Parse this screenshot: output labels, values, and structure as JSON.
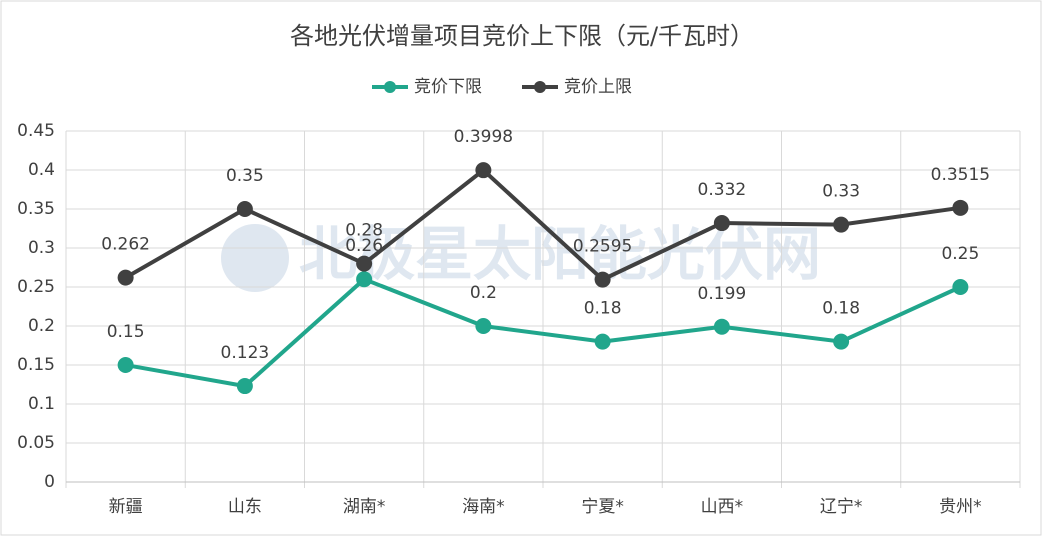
{
  "chart_data": {
    "type": "line",
    "title": "各地光伏增量项目竞价上下限（元/千瓦时）",
    "watermark": "北极星太阳能光伏网",
    "categories": [
      "新疆",
      "山东",
      "湖南*",
      "海南*",
      "宁夏*",
      "山西*",
      "辽宁*",
      "贵州*"
    ],
    "series": [
      {
        "name": "竞价下限",
        "color": "#21a68c",
        "values": [
          0.15,
          0.123,
          0.26,
          0.2,
          0.18,
          0.199,
          0.18,
          0.25
        ]
      },
      {
        "name": "竞价上限",
        "color": "#404040",
        "values": [
          0.262,
          0.35,
          0.28,
          0.3998,
          0.2595,
          0.332,
          0.33,
          0.3515
        ]
      }
    ],
    "ylim": [
      0,
      0.45
    ],
    "yticks": [
      0,
      0.05,
      0.1,
      0.15,
      0.2,
      0.25,
      0.3,
      0.35,
      0.4,
      0.45
    ],
    "grid": true,
    "legend": "top"
  }
}
